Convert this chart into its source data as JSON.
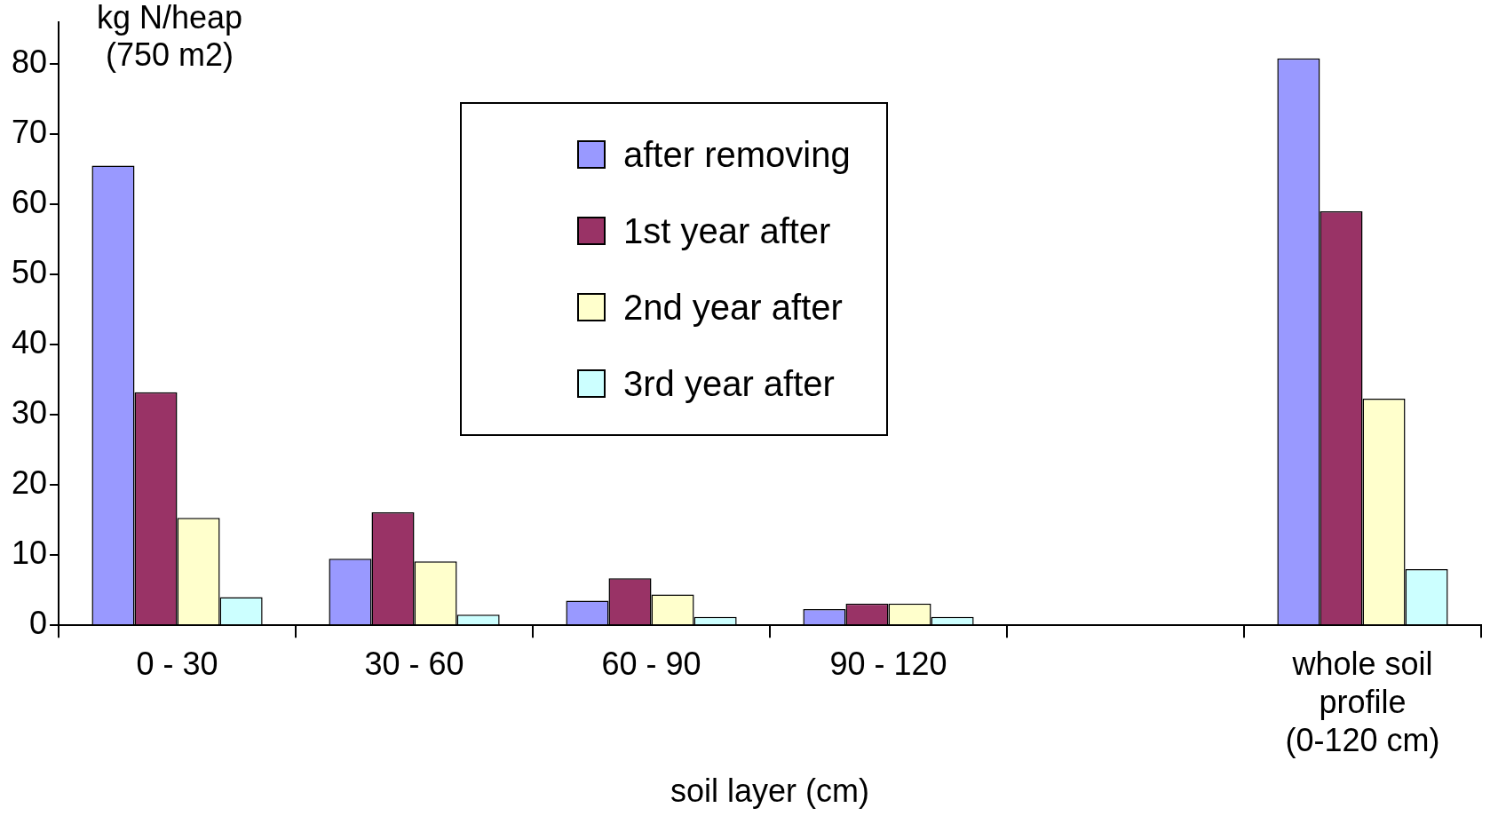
{
  "chart_data": {
    "type": "bar",
    "ylabel": "kg N/heap (750 m2)",
    "xlabel": "soil layer (cm)",
    "categories": [
      "0 - 30",
      "30 - 60",
      "60 - 90",
      "90 - 120",
      null,
      "whole soil profile (0-120 cm)"
    ],
    "series": [
      {
        "name": "after removing",
        "color": "#9999ff",
        "values": [
          65.5,
          9.5,
          3.5,
          2.3,
          null,
          80.8
        ]
      },
      {
        "name": "1st year after",
        "color": "#993366",
        "values": [
          33.2,
          16.1,
          6.7,
          3.1,
          null,
          59
        ]
      },
      {
        "name": "2nd year after",
        "color": "#ffffcc",
        "values": [
          15.3,
          9.1,
          4.4,
          3.1,
          null,
          32.3
        ]
      },
      {
        "name": "3rd year after",
        "color": "#ccffff",
        "values": [
          4,
          1.5,
          1.2,
          1.2,
          null,
          8
        ]
      }
    ],
    "ylim": [
      0,
      86
    ],
    "yticks": [
      0,
      10,
      20,
      30,
      40,
      50,
      60,
      70,
      80
    ],
    "grid": false,
    "legend": "top"
  }
}
